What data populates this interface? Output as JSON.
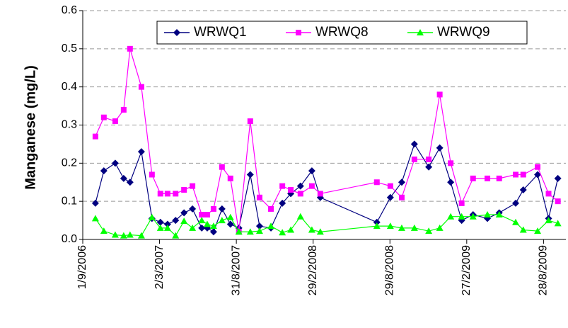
{
  "chart_data": {
    "type": "line",
    "ylabel": "Manganese (mg/L)",
    "x": [
      "2006-10-01",
      "2006-10-21",
      "2006-11-17",
      "2006-12-07",
      "2006-12-22",
      "2007-01-18",
      "2007-02-12",
      "2007-03-04",
      "2007-03-21",
      "2007-04-09",
      "2007-04-29",
      "2007-05-19",
      "2007-06-10",
      "2007-06-23",
      "2007-07-08",
      "2007-07-28",
      "2007-08-17",
      "2007-09-06",
      "2007-10-03",
      "2007-10-25",
      "2007-11-21",
      "2007-12-18",
      "2008-01-07",
      "2008-01-30",
      "2008-02-26",
      "2008-03-17",
      "2008-07-29",
      "2008-08-30",
      "2008-09-26",
      "2008-10-26",
      "2008-11-29",
      "2008-12-25",
      "2009-01-20",
      "2009-02-15",
      "2009-03-14",
      "2009-04-17",
      "2009-05-15",
      "2009-06-23",
      "2009-07-11",
      "2009-08-14",
      "2009-09-09",
      "2009-10-01"
    ],
    "series": [
      {
        "name": "WRWQ1",
        "color": "#000080",
        "marker": "diamond",
        "values": [
          0.095,
          0.18,
          0.2,
          0.16,
          0.15,
          0.23,
          0.055,
          0.045,
          0.04,
          0.05,
          0.07,
          0.08,
          0.03,
          0.03,
          0.02,
          0.08,
          0.04,
          0.03,
          0.17,
          0.035,
          0.03,
          0.095,
          0.12,
          0.14,
          0.18,
          0.11,
          0.045,
          0.11,
          0.15,
          0.25,
          0.19,
          0.24,
          0.15,
          0.05,
          0.065,
          0.055,
          0.07,
          0.095,
          0.13,
          0.17,
          0.055,
          0.16
        ]
      },
      {
        "name": "WRWQ8",
        "color": "#FF00FF",
        "marker": "square",
        "values": [
          0.27,
          0.32,
          0.31,
          0.34,
          0.5,
          0.4,
          0.17,
          0.12,
          0.12,
          0.12,
          0.13,
          0.14,
          0.065,
          0.065,
          0.08,
          0.19,
          0.16,
          0.02,
          0.31,
          0.11,
          0.08,
          0.14,
          0.13,
          0.12,
          0.14,
          0.12,
          0.15,
          0.14,
          0.11,
          0.21,
          0.21,
          0.38,
          0.2,
          0.095,
          0.16,
          0.16,
          0.16,
          0.17,
          0.17,
          0.19,
          0.12,
          0.1
        ]
      },
      {
        "name": "WRWQ9",
        "color": "#00FF00",
        "marker": "triangle",
        "values": [
          0.055,
          0.022,
          0.012,
          0.01,
          0.012,
          0.01,
          0.058,
          0.03,
          0.03,
          0.01,
          0.048,
          0.03,
          0.05,
          0.04,
          0.035,
          0.05,
          0.058,
          0.02,
          0.02,
          0.022,
          0.035,
          0.018,
          0.025,
          0.06,
          0.025,
          0.02,
          0.035,
          0.035,
          0.03,
          0.03,
          0.022,
          0.03,
          0.06,
          0.06,
          0.06,
          0.065,
          0.065,
          0.045,
          0.025,
          0.022,
          0.05,
          0.042
        ]
      }
    ],
    "xlim": [
      "2006-09-01",
      "2009-10-20"
    ],
    "xticks": [
      {
        "value": "2006-09-01",
        "label": "1/9/2006"
      },
      {
        "value": "2007-03-02",
        "label": "2/3/2007"
      },
      {
        "value": "2007-08-31",
        "label": "31/8/2007"
      },
      {
        "value": "2008-02-29",
        "label": "29/2/2008"
      },
      {
        "value": "2008-08-29",
        "label": "29/8/2008"
      },
      {
        "value": "2009-02-27",
        "label": "27/2/2009"
      },
      {
        "value": "2009-08-28",
        "label": "28/8/2009"
      }
    ],
    "ylim": [
      0,
      0.6
    ],
    "yticks": [
      {
        "value": 0,
        "label": "0.0"
      },
      0.1,
      0.2,
      0.3,
      0.4,
      0.5,
      0.6
    ],
    "grid": true,
    "legend": "top"
  }
}
